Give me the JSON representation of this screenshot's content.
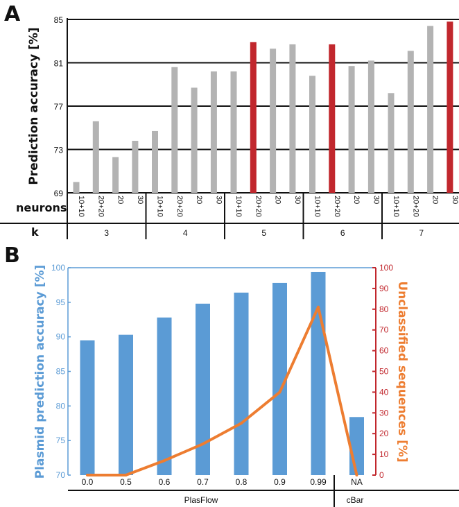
{
  "colors": {
    "grey": "#b3b3b3",
    "red": "#c1272d",
    "blue": "#5b9bd5",
    "orange": "#ed7d31",
    "right_axis": "#c1272d",
    "black": "#111111"
  },
  "chart_data": [
    {
      "panel": "A",
      "type": "bar",
      "ylabel": "Prediction accuracy [%]",
      "ylim": [
        69,
        85
      ],
      "yticks": [
        69,
        73,
        77,
        81,
        85
      ],
      "grid": true,
      "row_labels": {
        "neurons": "neurons",
        "k": "k"
      },
      "groups": [
        {
          "k": "3",
          "neurons": [
            "10+10",
            "20+20",
            "20",
            "30"
          ],
          "values": [
            70.0,
            75.6,
            72.3,
            73.8
          ]
        },
        {
          "k": "4",
          "neurons": [
            "10+10",
            "20+20",
            "20",
            "30"
          ],
          "values": [
            74.7,
            80.6,
            78.7,
            80.2
          ]
        },
        {
          "k": "5",
          "neurons": [
            "10+10",
            "20+20",
            "20",
            "30"
          ],
          "values": [
            80.2,
            82.9,
            82.3,
            82.7
          ]
        },
        {
          "k": "6",
          "neurons": [
            "10+10",
            "20+20",
            "20",
            "30"
          ],
          "values": [
            79.8,
            82.7,
            80.7,
            81.2
          ]
        },
        {
          "k": "7",
          "neurons": [
            "10+10",
            "20+20",
            "20",
            "30"
          ],
          "values": [
            78.2,
            82.1,
            84.4,
            84.8
          ]
        }
      ],
      "highlighted": [
        [
          2,
          1
        ],
        [
          3,
          1
        ],
        [
          4,
          3
        ]
      ]
    },
    {
      "panel": "B",
      "type": "bar+line",
      "ylabel_left": "Plasmid prediction accuracy [%]",
      "ylabel_right": "Unclassified sequences [%]",
      "ylim_left": [
        70,
        100
      ],
      "yticks_left": [
        70,
        75,
        80,
        85,
        90,
        95,
        100
      ],
      "ylim_right": [
        0,
        100
      ],
      "yticks_right": [
        0,
        10,
        20,
        30,
        40,
        50,
        60,
        70,
        80,
        90,
        100
      ],
      "categories": [
        "0.0",
        "0.5",
        "0.6",
        "0.7",
        "0.8",
        "0.9",
        "0.99",
        "NA"
      ],
      "bar_values": [
        89.5,
        90.3,
        92.8,
        94.8,
        96.4,
        97.8,
        99.4,
        78.4
      ],
      "line_values": [
        0,
        0,
        7,
        15,
        25,
        40,
        81,
        0
      ],
      "tools": [
        {
          "name": "PlasFlow",
          "span": [
            0,
            6
          ]
        },
        {
          "name": "cBar",
          "span": [
            7,
            7
          ]
        }
      ]
    }
  ]
}
